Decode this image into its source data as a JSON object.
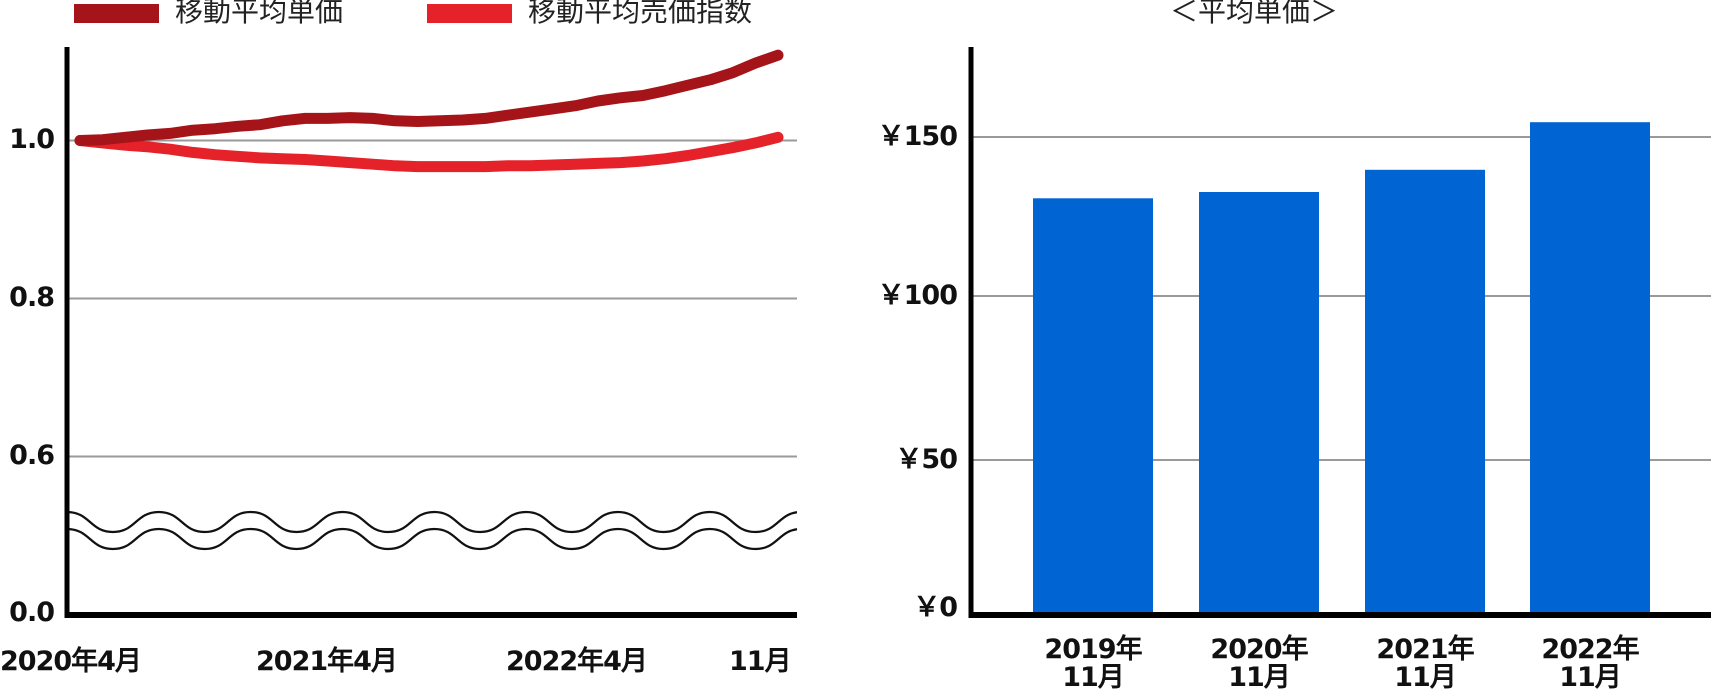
{
  "legend": {
    "items": [
      {
        "label": "移動平均単価",
        "color": "#a51419"
      },
      {
        "label": "移動平均売価指数",
        "color": "#e52129"
      }
    ]
  },
  "left_chart": {
    "y_ticks": [
      "1.0",
      "0.8",
      "0.6",
      "0.0"
    ],
    "x_ticks": [
      "2020年4月",
      "2021年4月",
      "2022年4月",
      "11月"
    ]
  },
  "right_chart": {
    "title": "＜平均単価＞",
    "y_ticks": [
      "￥150",
      "￥100",
      "￥50",
      "￥0"
    ],
    "x_ticks": [
      {
        "line1": "2019年",
        "line2": "11月"
      },
      {
        "line1": "2020年",
        "line2": "11月"
      },
      {
        "line1": "2021年",
        "line2": "11月"
      },
      {
        "line1": "2022年",
        "line2": "11月"
      }
    ],
    "bar_color": "#0064d2"
  },
  "chart_data": [
    {
      "type": "line",
      "title": "",
      "xlabel": "",
      "ylabel": "",
      "x_start": "2020年4月",
      "x_end": "2022年11月",
      "x_tick_labels": [
        "2020年4月",
        "2021年4月",
        "2022年4月",
        "11月"
      ],
      "y_tick_labels": [
        "0.0",
        "0.6",
        "0.8",
        "1.0"
      ],
      "ylim": [
        0.0,
        1.12
      ],
      "axis_break": [
        0.0,
        0.6
      ],
      "grid": true,
      "legend_position": "top",
      "series": [
        {
          "name": "移動平均単価",
          "color": "#a51419",
          "values": [
            1.0,
            1.001,
            1.004,
            1.007,
            1.009,
            1.013,
            1.015,
            1.018,
            1.02,
            1.025,
            1.028,
            1.028,
            1.029,
            1.028,
            1.025,
            1.024,
            1.025,
            1.026,
            1.028,
            1.032,
            1.036,
            1.04,
            1.044,
            1.05,
            1.054,
            1.057,
            1.063,
            1.07,
            1.077,
            1.086,
            1.098,
            1.108
          ]
        },
        {
          "name": "移動平均売価指数",
          "color": "#e52129",
          "values": [
            1.0,
            0.997,
            0.994,
            0.992,
            0.989,
            0.985,
            0.982,
            0.98,
            0.978,
            0.977,
            0.976,
            0.974,
            0.972,
            0.97,
            0.968,
            0.967,
            0.967,
            0.967,
            0.967,
            0.968,
            0.968,
            0.969,
            0.97,
            0.971,
            0.972,
            0.974,
            0.977,
            0.981,
            0.986,
            0.991,
            0.997,
            1.004
          ]
        }
      ]
    },
    {
      "type": "bar",
      "title": "＜平均単価＞",
      "categories": [
        "2019年11月",
        "2020年11月",
        "2021年11月",
        "2022年11月"
      ],
      "values": [
        131,
        133,
        140,
        155
      ],
      "xlabel": "",
      "ylabel": "",
      "ylim": [
        0,
        175
      ],
      "y_tick_labels": [
        "￥0",
        "￥50",
        "￥100",
        "￥150"
      ],
      "grid": true,
      "color": "#0064d2"
    }
  ]
}
